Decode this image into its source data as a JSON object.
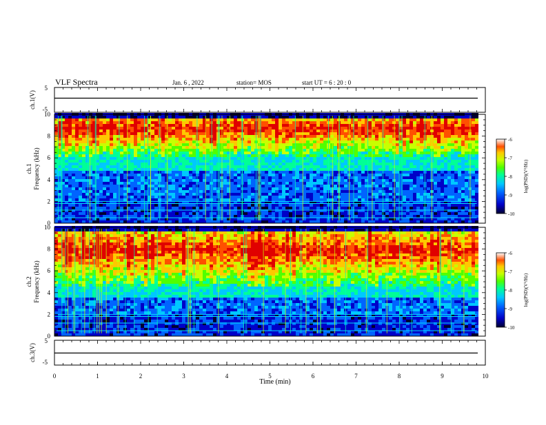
{
  "header": {
    "title": "VLF Spectra",
    "date": "Jan. 6 , 2022",
    "station": "station= MOS",
    "start": "start UT =  6 : 20 : 0"
  },
  "colors": {
    "spectrogram_scale": [
      "#000030",
      "#0000c8",
      "#0064ff",
      "#00c8ff",
      "#00ff96",
      "#50ff00",
      "#c8ff00",
      "#ffc800",
      "#ff5000",
      "#e00000"
    ]
  },
  "chart_data": [
    {
      "type": "line",
      "panel": "ch1-voltage",
      "ylabel": "ch.1(V)",
      "ylim": [
        -5,
        5
      ],
      "y_ticks": [
        "5",
        "-5"
      ],
      "x": [
        0,
        9.8
      ],
      "values": [
        -0.3,
        -0.3
      ]
    },
    {
      "type": "heatmap",
      "panel": "ch1-spectrogram",
      "ylabel": "ch.1\nFrequency (kHz)",
      "ylim": [
        0,
        10
      ],
      "y_ticks": [
        "0",
        "2",
        "4",
        "6",
        "8",
        "10"
      ],
      "xlim": [
        0,
        9.8
      ],
      "emission_band_khz": [
        6.0,
        9.5
      ],
      "colorbar": {
        "label": "log(PSD)(V²/Hz)",
        "range": [
          -10,
          -6
        ],
        "ticks": [
          "-6",
          "-7",
          "-8",
          "-9",
          "-10"
        ]
      }
    },
    {
      "type": "heatmap",
      "panel": "ch2-spectrogram",
      "ylabel": "ch.2\nFrequency (kHz)",
      "ylim": [
        0,
        10
      ],
      "y_ticks": [
        "0",
        "2",
        "4",
        "6",
        "8",
        "10"
      ],
      "xlim": [
        0,
        9.8
      ],
      "emission_band_khz": [
        4.5,
        9.5
      ],
      "colorbar": {
        "label": "log(PSD)(V²/Hz)",
        "range": [
          -10,
          -6
        ],
        "ticks": [
          "-6",
          "-7",
          "-8",
          "-9",
          "-10"
        ]
      }
    },
    {
      "type": "line",
      "panel": "ch3-voltage",
      "ylabel": "ch.3(V)",
      "ylim": [
        -5,
        5
      ],
      "y_ticks": [
        "5",
        "-5"
      ],
      "x": [
        0,
        9.8
      ],
      "values": [
        -0.3,
        -0.3
      ]
    }
  ],
  "x_axis": {
    "label": "Time (min)",
    "range": [
      0,
      10
    ],
    "ticks": [
      "0",
      "1",
      "2",
      "3",
      "4",
      "5",
      "6",
      "7",
      "8",
      "9",
      "10"
    ]
  }
}
